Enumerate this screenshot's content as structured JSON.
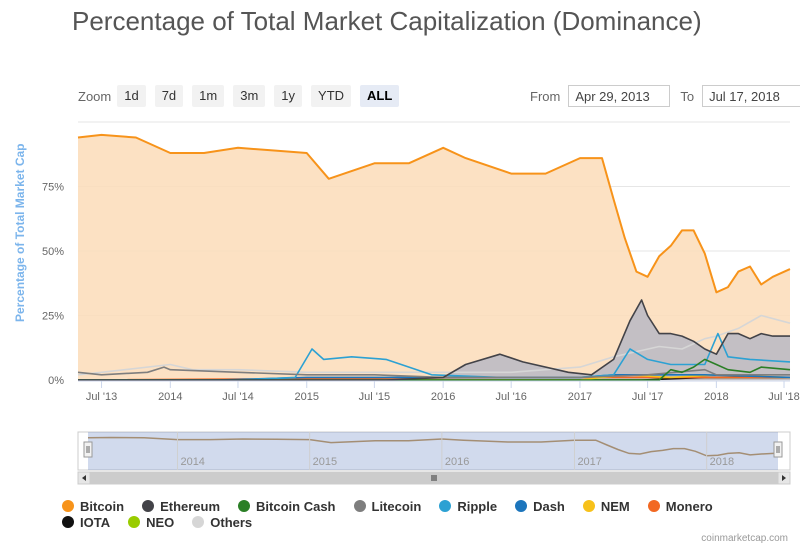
{
  "title": "Percentage of Total Market Capitalization (Dominance)",
  "zoom": {
    "label": "Zoom",
    "buttons": [
      "1d",
      "7d",
      "1m",
      "3m",
      "1y",
      "YTD",
      "ALL"
    ],
    "active": "ALL"
  },
  "range": {
    "from_label": "From",
    "from_value": "Apr 29, 2013",
    "to_label": "To",
    "to_value": "Jul 17, 2018"
  },
  "credit": "coinmarketcap.com",
  "chart_data": {
    "type": "area",
    "ylabel": "Percentage of Total Market Cap",
    "y_ticks": [
      "0%",
      "25%",
      "50%",
      "75%"
    ],
    "y_tick_values": [
      0,
      25,
      50,
      75
    ],
    "ylim": [
      0,
      100
    ],
    "x_ticks": [
      "Jul '13",
      "2014",
      "Jul '14",
      "2015",
      "Jul '15",
      "2016",
      "Jul '16",
      "2017",
      "Jul '17",
      "2018",
      "Jul '18"
    ],
    "x_tick_dates": [
      "2013-07-01",
      "2014-01-01",
      "2014-07-01",
      "2015-01-01",
      "2015-07-01",
      "2016-01-01",
      "2016-07-01",
      "2017-01-01",
      "2017-07-01",
      "2018-01-01",
      "2018-07-01"
    ],
    "xlim": [
      "2013-04-29",
      "2018-07-17"
    ],
    "grid": true,
    "legend_position": "bottom-left",
    "navigator_ticks": [
      "2014",
      "2015",
      "2016",
      "2017",
      "2018"
    ],
    "series": [
      {
        "name": "Bitcoin",
        "color": "#f7931a",
        "fill": "#fcdcb8",
        "x": [
          "2013-04-29",
          "2013-07-01",
          "2013-10-01",
          "2014-01-01",
          "2014-04-01",
          "2014-07-01",
          "2014-10-01",
          "2015-01-01",
          "2015-03-01",
          "2015-07-01",
          "2015-10-01",
          "2016-01-01",
          "2016-03-01",
          "2016-07-01",
          "2016-10-01",
          "2017-01-01",
          "2017-03-01",
          "2017-04-01",
          "2017-05-01",
          "2017-06-01",
          "2017-07-01",
          "2017-08-01",
          "2017-09-01",
          "2017-10-01",
          "2017-11-01",
          "2017-12-01",
          "2018-01-01",
          "2018-02-01",
          "2018-03-01",
          "2018-04-01",
          "2018-05-01",
          "2018-06-01",
          "2018-07-17"
        ],
        "values": [
          94,
          95,
          94,
          88,
          88,
          90,
          89,
          88,
          78,
          84,
          84,
          90,
          86,
          80,
          80,
          86,
          86,
          70,
          55,
          42,
          40,
          48,
          52,
          58,
          58,
          49,
          34,
          36,
          42,
          44,
          37,
          40,
          43
        ]
      },
      {
        "name": "Ethereum",
        "color": "#434348",
        "fill": "#b9b9c4",
        "x": [
          "2013-04-29",
          "2015-08-01",
          "2016-01-01",
          "2016-03-01",
          "2016-06-01",
          "2016-08-01",
          "2016-12-01",
          "2017-02-01",
          "2017-04-01",
          "2017-05-15",
          "2017-06-15",
          "2017-07-01",
          "2017-08-01",
          "2017-09-01",
          "2017-10-01",
          "2017-11-01",
          "2017-12-01",
          "2018-01-01",
          "2018-02-01",
          "2018-03-01",
          "2018-04-01",
          "2018-05-01",
          "2018-06-01",
          "2018-07-17"
        ],
        "values": [
          0,
          0,
          1,
          6,
          10,
          7,
          3,
          2,
          8,
          23,
          31,
          25,
          18,
          18,
          17,
          15,
          12,
          10,
          18,
          18,
          16,
          18,
          17,
          17
        ]
      },
      {
        "name": "Bitcoin Cash",
        "color": "#2b7f26",
        "x": [
          "2013-04-29",
          "2017-08-01",
          "2017-09-01",
          "2017-10-01",
          "2017-11-01",
          "2017-12-01",
          "2018-01-01",
          "2018-02-01",
          "2018-04-01",
          "2018-05-01",
          "2018-07-17"
        ],
        "values": [
          0,
          0,
          4,
          3,
          5,
          8,
          6,
          4,
          3,
          5,
          4
        ]
      },
      {
        "name": "Litecoin",
        "color": "#7e7e7e",
        "x": [
          "2013-04-29",
          "2013-07-01",
          "2013-11-01",
          "2013-12-15",
          "2014-01-01",
          "2014-07-01",
          "2015-01-01",
          "2015-07-01",
          "2016-01-01",
          "2016-07-01",
          "2017-01-01",
          "2017-07-01",
          "2017-12-01",
          "2018-01-01",
          "2018-07-17"
        ],
        "values": [
          3,
          2,
          3,
          5,
          4,
          3,
          2,
          2,
          1,
          1,
          1,
          2,
          4,
          2,
          2
        ]
      },
      {
        "name": "Ripple",
        "color": "#2ca1d3",
        "x": [
          "2013-04-29",
          "2014-07-01",
          "2014-12-01",
          "2015-01-15",
          "2015-02-15",
          "2015-05-01",
          "2015-08-01",
          "2015-12-01",
          "2016-06-01",
          "2017-01-01",
          "2017-04-01",
          "2017-05-15",
          "2017-07-01",
          "2017-09-01",
          "2017-12-01",
          "2018-01-05",
          "2018-02-01",
          "2018-04-01",
          "2018-07-17"
        ],
        "values": [
          0,
          0,
          1,
          12,
          8,
          9,
          8,
          2,
          1,
          1,
          2,
          12,
          8,
          6,
          6,
          18,
          9,
          8,
          7
        ]
      },
      {
        "name": "Dash",
        "color": "#1c75bc",
        "x": [
          "2013-04-29",
          "2014-05-01",
          "2015-01-01",
          "2016-01-01",
          "2017-01-01",
          "2017-04-01",
          "2017-07-01",
          "2017-12-01",
          "2018-07-17"
        ],
        "values": [
          0,
          0,
          1,
          1,
          1,
          2,
          2,
          2,
          1
        ]
      },
      {
        "name": "NEM",
        "color": "#f7c11a",
        "x": [
          "2013-04-29",
          "2017-01-01",
          "2017-05-01",
          "2017-09-01",
          "2018-01-01",
          "2018-07-17"
        ],
        "values": [
          0,
          0,
          2,
          1,
          2,
          1
        ]
      },
      {
        "name": "Monero",
        "color": "#f26822",
        "x": [
          "2013-04-29",
          "2016-08-01",
          "2017-01-01",
          "2018-01-01",
          "2018-07-17"
        ],
        "values": [
          0,
          1,
          1,
          1,
          1
        ]
      },
      {
        "name": "IOTA",
        "color": "#111111",
        "x": [
          "2013-04-29",
          "2017-06-15",
          "2017-12-01",
          "2018-01-01",
          "2018-07-17"
        ],
        "values": [
          0,
          0,
          1,
          1,
          1
        ]
      },
      {
        "name": "NEO",
        "color": "#99cc00",
        "x": [
          "2013-04-29",
          "2017-07-01",
          "2017-10-01",
          "2018-01-01",
          "2018-07-17"
        ],
        "values": [
          0,
          0,
          1,
          1,
          1
        ]
      },
      {
        "name": "Others",
        "color": "#d6d6d6",
        "x": [
          "2013-04-29",
          "2013-07-01",
          "2014-01-01",
          "2014-03-01",
          "2014-07-01",
          "2015-01-01",
          "2015-07-01",
          "2016-01-01",
          "2016-07-01",
          "2017-01-01",
          "2017-04-01",
          "2017-06-01",
          "2017-08-01",
          "2017-10-01",
          "2017-12-01",
          "2018-01-01",
          "2018-03-01",
          "2018-05-01",
          "2018-07-17"
        ],
        "values": [
          2,
          3,
          6,
          4,
          4,
          3,
          3,
          3,
          3,
          5,
          9,
          11,
          13,
          12,
          16,
          17,
          20,
          25,
          22
        ]
      }
    ]
  }
}
